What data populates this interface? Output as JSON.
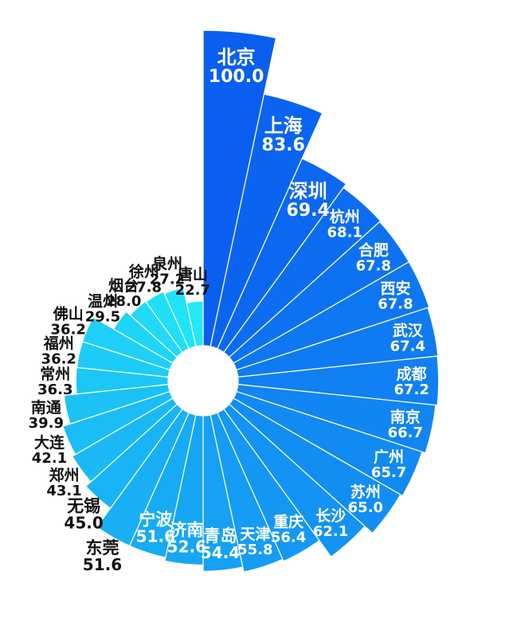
{
  "chart_data": {
    "type": "radial-bar",
    "title": "",
    "categories": [
      "北京",
      "上海",
      "深圳",
      "杭州",
      "合肥",
      "西安",
      "武汉",
      "成都",
      "南京",
      "广州",
      "苏州",
      "长沙",
      "重庆",
      "天津",
      "青岛",
      "济南",
      "宁波",
      "东莞",
      "无锡",
      "郑州",
      "大连",
      "南通",
      "常州",
      "福州",
      "佛山",
      "温州",
      "烟台",
      "徐州",
      "泉州",
      "唐山"
    ],
    "values": [
      100.0,
      83.6,
      69.4,
      68.1,
      67.8,
      67.8,
      67.4,
      67.2,
      66.7,
      65.7,
      65.0,
      62.1,
      56.4,
      55.8,
      54.4,
      52.6,
      51.6,
      51.6,
      45.0,
      43.1,
      42.1,
      39.9,
      36.3,
      36.2,
      36.2,
      29.5,
      28.0,
      27.8,
      27.2,
      22.7
    ],
    "value_labels": [
      "100.0",
      "83.6",
      "69.4",
      "68.1",
      "67.8",
      "67.8",
      "67.4",
      "67.2",
      "66.7",
      "65.7",
      "65.0",
      "62.1",
      "56.4",
      "55.8",
      "54.4",
      "52.6",
      "51.6",
      "51.6",
      "45.0",
      "43.1",
      "42.1",
      "39.9",
      "36.3",
      "36.2",
      "36.2",
      "29.5",
      "28.0",
      "27.8",
      "27.2",
      "22.7"
    ],
    "colors": {
      "start": "#0a5ff0",
      "end": "#22e8f8",
      "label_inside": "#ffffff",
      "label_outside": "#111111",
      "separator": "#ffffff"
    }
  }
}
